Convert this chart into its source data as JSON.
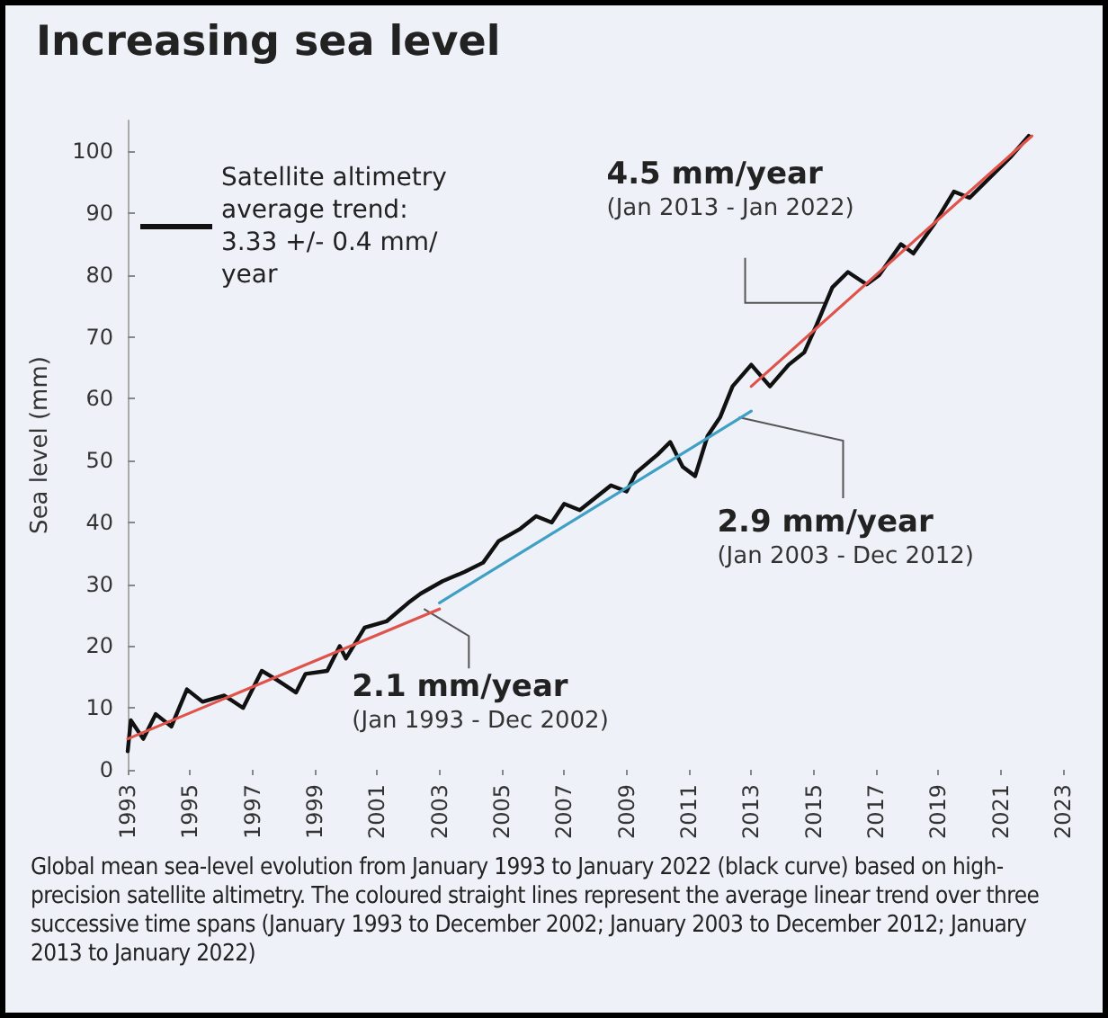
{
  "chart_data": {
    "type": "line",
    "title": "Increasing sea level",
    "ylabel": "Sea level (mm)",
    "xlim": [
      1993,
      2023
    ],
    "xticks": [
      1993,
      1995,
      1997,
      1999,
      2001,
      2003,
      2005,
      2007,
      2009,
      2011,
      2013,
      2015,
      2017,
      2019,
      2021,
      2023
    ],
    "ylim": [
      0,
      105
    ],
    "yticks": [
      0,
      10,
      20,
      30,
      40,
      50,
      60,
      70,
      80,
      90,
      100
    ],
    "grid": false,
    "legend": "top left",
    "marker": "none",
    "line_style": "solid",
    "series": [
      {
        "name": "Satellite altimetry average trend:\n3.33 +/- 0.4 mm/year",
        "color": "#111111",
        "x": [
          1993.0,
          1993.1,
          1993.5,
          1993.9,
          1994.4,
          1994.9,
          1995.4,
          1996.1,
          1996.7,
          1997.3,
          1997.8,
          1998.4,
          1998.7,
          1999.4,
          1999.8,
          2000.0,
          2000.6,
          2001.3,
          2002.0,
          2002.4,
          2003.1,
          2003.8,
          2004.4,
          2004.9,
          2005.6,
          2006.1,
          2006.6,
          2007.0,
          2007.5,
          2008.0,
          2008.5,
          2009.0,
          2009.3,
          2010.0,
          2010.4,
          2010.8,
          2011.2,
          2011.6,
          2012.0,
          2012.4,
          2013.0,
          2013.6,
          2014.2,
          2014.7,
          2015.1,
          2015.6,
          2016.1,
          2016.7,
          2017.1,
          2017.8,
          2018.2,
          2018.9,
          2019.5,
          2020.0,
          2020.8,
          2021.3,
          2021.9
        ],
        "values": [
          3,
          8,
          5,
          9,
          7,
          13,
          11,
          12,
          10,
          16,
          14.5,
          12.5,
          15.5,
          16,
          20,
          18,
          23,
          24,
          27,
          28.5,
          30.5,
          32,
          33.5,
          37,
          39,
          41,
          40,
          43,
          42,
          44,
          46,
          45,
          48,
          51,
          53,
          49,
          47.5,
          54,
          57,
          62,
          65.5,
          62,
          65.5,
          67.5,
          72,
          78,
          80.5,
          78.5,
          80,
          85,
          83.5,
          88.5,
          93.5,
          92.5,
          96.5,
          99,
          102.5
        ]
      },
      {
        "color": "#e0534a",
        "x": [
          1993,
          2003
        ],
        "values": [
          5,
          26
        ]
      },
      {
        "color": "#3f9fc4",
        "x": [
          2003,
          2013
        ],
        "values": [
          27,
          58
        ]
      },
      {
        "color": "#e0534a",
        "x": [
          2013,
          2022
        ],
        "values": [
          62,
          102.5
        ]
      }
    ],
    "annotations": [
      {
        "text": "2.1 mm/year\n(Jan 1993 - Dec 2002)",
        "x": 2002.5,
        "y": 26
      },
      {
        "text": "2.9 mm/year\n(Jan 2003 - Dec 2012)",
        "x": 2012.6,
        "y": 57
      },
      {
        "text": "4.5 mm/year\n(Jan 2013 - Jan 2022)",
        "x": 2015.4,
        "y": 75.5
      },
      "Global mean sea-level evolution from January 1993 to January 2022 (black curve) based on high-precision satellite altimetry. The coloured straight lines represent the average linear trend over three successive time spans (January 1993 to December 2002; January 2003 to December 2012; January 2013 to January 2022)"
    ]
  }
}
